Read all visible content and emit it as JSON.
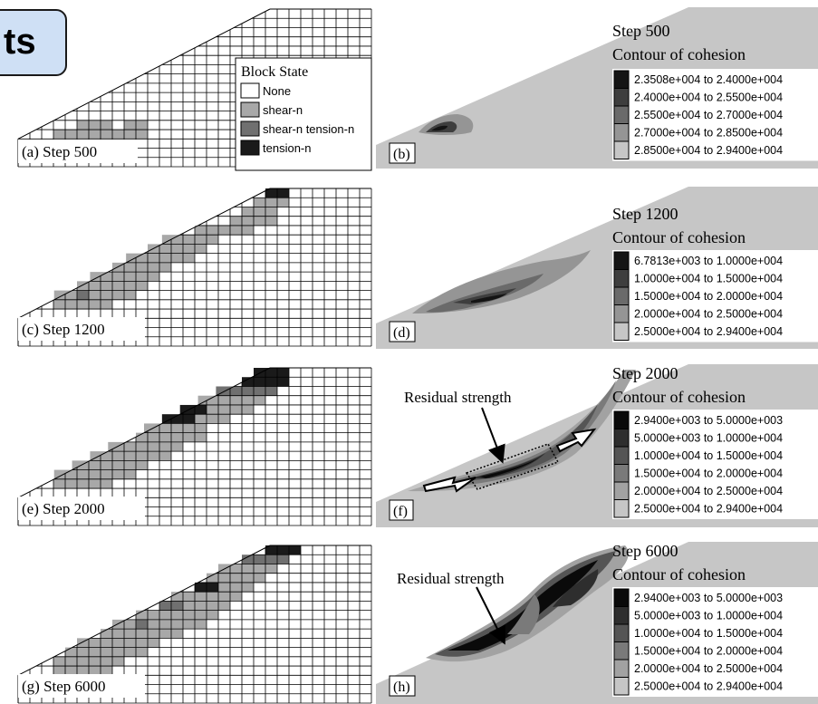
{
  "badge_text": "ts",
  "block_legend": {
    "title": "Block State",
    "items": [
      {
        "label": "None",
        "color": "#ffffff"
      },
      {
        "label": "shear-n",
        "color": "#a8a8a8"
      },
      {
        "label": "shear-n tension-n",
        "color": "#707070"
      },
      {
        "label": "tension-n",
        "color": "#1a1a1a"
      }
    ]
  },
  "contour_title": "Contour of cohesion",
  "panels": [
    {
      "label": "(a)",
      "step": "Step 500"
    },
    {
      "label": "(b)",
      "step": "Step 500",
      "legend": [
        "2.3508e+004 to  2.4000e+004",
        "2.4000e+004 to  2.5500e+004",
        "2.5500e+004 to  2.7000e+004",
        "2.7000e+004 to  2.8500e+004",
        "2.8500e+004 to  2.9400e+004"
      ]
    },
    {
      "label": "(c)",
      "step": "Step 1200"
    },
    {
      "label": "(d)",
      "step": "Step 1200",
      "legend": [
        "6.7813e+003 to  1.0000e+004",
        "1.0000e+004 to  1.5000e+004",
        "1.5000e+004 to  2.0000e+004",
        "2.0000e+004 to  2.5000e+004",
        "2.5000e+004 to  2.9400e+004"
      ]
    },
    {
      "label": "(e)",
      "step": "Step 2000"
    },
    {
      "label": "(f)",
      "step": "Step 2000",
      "annotation": "Residual strength",
      "legend": [
        "2.9400e+003 to  5.0000e+003",
        "5.0000e+003 to  1.0000e+004",
        "1.0000e+004 to  1.5000e+004",
        "1.5000e+004 to  2.0000e+004",
        "2.0000e+004 to  2.5000e+004",
        "2.5000e+004 to  2.9400e+004"
      ]
    },
    {
      "label": "(g)",
      "step": "Step 6000"
    },
    {
      "label": "(h)",
      "step": "Step 6000",
      "annotation": "Residual strength",
      "legend": [
        "2.9400e+003 to  5.0000e+003",
        "5.0000e+003 to  1.0000e+004",
        "1.0000e+004 to  1.5000e+004",
        "1.5000e+004 to  2.0000e+004",
        "2.0000e+004 to  2.5000e+004",
        "2.5000e+004 to  2.9400e+004"
      ]
    }
  ],
  "colors": {
    "contour_background": "#c6c6c6",
    "legend_shades_5": [
      "#141414",
      "#3e3e3e",
      "#6a6a6a",
      "#959595",
      "#c6c6c6"
    ],
    "legend_shades_6": [
      "#0a0a0a",
      "#2e2e2e",
      "#555555",
      "#7a7a7a",
      "#a2a2a2",
      "#c6c6c6"
    ]
  }
}
